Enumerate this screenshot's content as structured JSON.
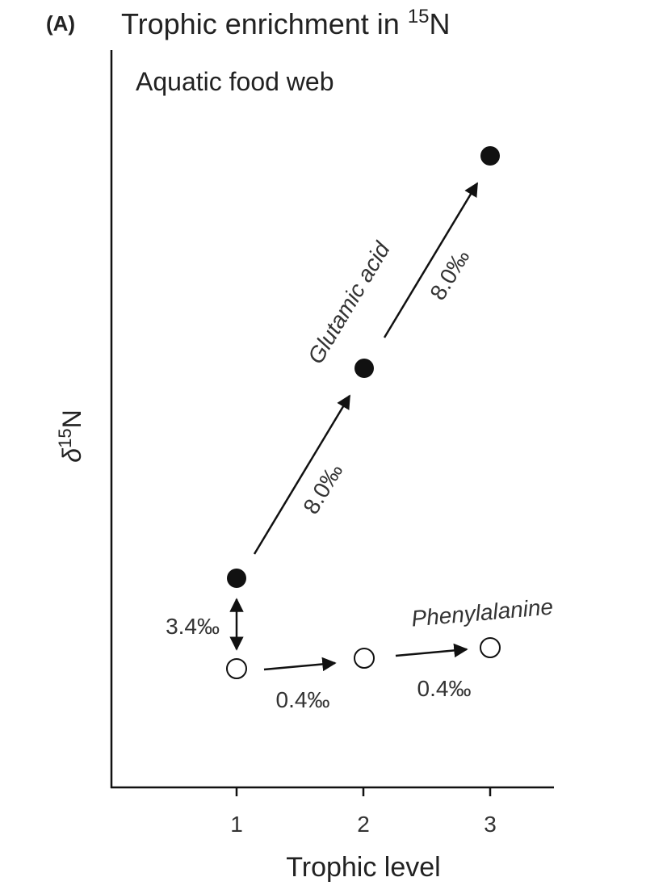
{
  "panel_label": "(A)",
  "title": {
    "text": "Trophic enrichment in ",
    "superscript": "15",
    "element": "N"
  },
  "subtitle": "Aquatic food web",
  "y_axis_label": {
    "symbol": "δ",
    "superscript": "15",
    "element": "N"
  },
  "x_axis": {
    "label": "Trophic level",
    "tick_labels": [
      "1",
      "2",
      "3"
    ]
  },
  "annotations": {
    "glutamic_acid": "Glutamic acid",
    "glutamic_step_1": "8.0‰",
    "glutamic_step_2": "8.0‰",
    "offset": "3.4‰",
    "phenylalanine": "Phenylalanine",
    "phenylalanine_step_1": "0.4‰",
    "phenylalanine_step_2": "0.4‰"
  }
}
